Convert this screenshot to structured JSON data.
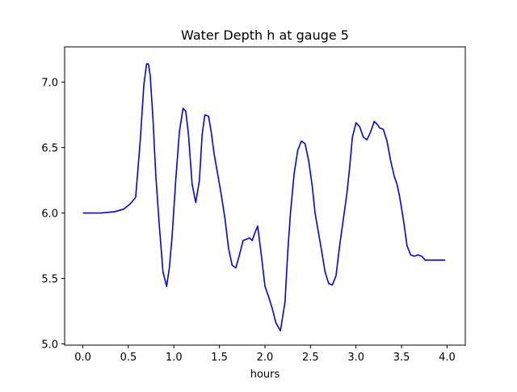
{
  "chart_data": {
    "type": "line",
    "title": "Water Depth h at gauge 5",
    "xlabel": "hours",
    "ylabel": "",
    "xlim": [
      -0.2,
      4.2
    ],
    "ylim": [
      4.99,
      7.27
    ],
    "xticks": [
      0.0,
      0.5,
      1.0,
      1.5,
      2.0,
      2.5,
      3.0,
      3.5,
      4.0
    ],
    "xtick_labels": [
      "0.0",
      "0.5",
      "1.0",
      "1.5",
      "2.0",
      "2.5",
      "3.0",
      "3.5",
      "4.0"
    ],
    "yticks": [
      5.0,
      5.5,
      6.0,
      6.5,
      7.0
    ],
    "ytick_labels": [
      "5.0",
      "5.5",
      "6.0",
      "6.5",
      "7.0"
    ],
    "grid": false,
    "series": [
      {
        "color": "#0000ff",
        "x": [
          0.0,
          0.2,
          0.35,
          0.45,
          0.52,
          0.58,
          0.63,
          0.67,
          0.7,
          0.72,
          0.74,
          0.77,
          0.8,
          0.84,
          0.88,
          0.92,
          0.95,
          0.98,
          1.02,
          1.06,
          1.1,
          1.13,
          1.16,
          1.2,
          1.24,
          1.28,
          1.31,
          1.34,
          1.38,
          1.41,
          1.44,
          1.48,
          1.52,
          1.56,
          1.6,
          1.64,
          1.68,
          1.72,
          1.76,
          1.8,
          1.83,
          1.86,
          1.89,
          1.92,
          1.96,
          2.0,
          2.04,
          2.08,
          2.12,
          2.17,
          2.22,
          2.25,
          2.28,
          2.32,
          2.36,
          2.4,
          2.44,
          2.48,
          2.52,
          2.55,
          2.58,
          2.62,
          2.66,
          2.7,
          2.74,
          2.78,
          2.82,
          2.86,
          2.9,
          2.93,
          2.96,
          3.0,
          3.04,
          3.08,
          3.12,
          3.16,
          3.2,
          3.23,
          3.26,
          3.3,
          3.34,
          3.38,
          3.42,
          3.45,
          3.48,
          3.52,
          3.56,
          3.6,
          3.64,
          3.68,
          3.72,
          3.76,
          3.8,
          3.84,
          3.88,
          3.92,
          3.95,
          3.98
        ],
        "y": [
          6.0,
          6.0,
          6.01,
          6.03,
          6.07,
          6.12,
          6.55,
          6.98,
          7.14,
          7.14,
          7.05,
          6.72,
          6.3,
          5.9,
          5.55,
          5.44,
          5.58,
          5.82,
          6.25,
          6.62,
          6.8,
          6.78,
          6.6,
          6.22,
          6.08,
          6.25,
          6.6,
          6.75,
          6.74,
          6.62,
          6.46,
          6.3,
          6.14,
          5.96,
          5.73,
          5.6,
          5.58,
          5.68,
          5.79,
          5.8,
          5.81,
          5.79,
          5.85,
          5.9,
          5.68,
          5.44,
          5.36,
          5.27,
          5.16,
          5.1,
          5.32,
          5.7,
          6.0,
          6.3,
          6.48,
          6.55,
          6.53,
          6.4,
          6.2,
          6.0,
          5.88,
          5.72,
          5.55,
          5.46,
          5.45,
          5.52,
          5.75,
          5.95,
          6.15,
          6.35,
          6.58,
          6.69,
          6.66,
          6.58,
          6.56,
          6.62,
          6.7,
          6.68,
          6.65,
          6.64,
          6.55,
          6.4,
          6.28,
          6.22,
          6.12,
          5.95,
          5.75,
          5.68,
          5.67,
          5.68,
          5.67,
          5.64,
          5.64,
          5.64,
          5.64,
          5.64,
          5.64,
          5.64
        ]
      }
    ]
  }
}
